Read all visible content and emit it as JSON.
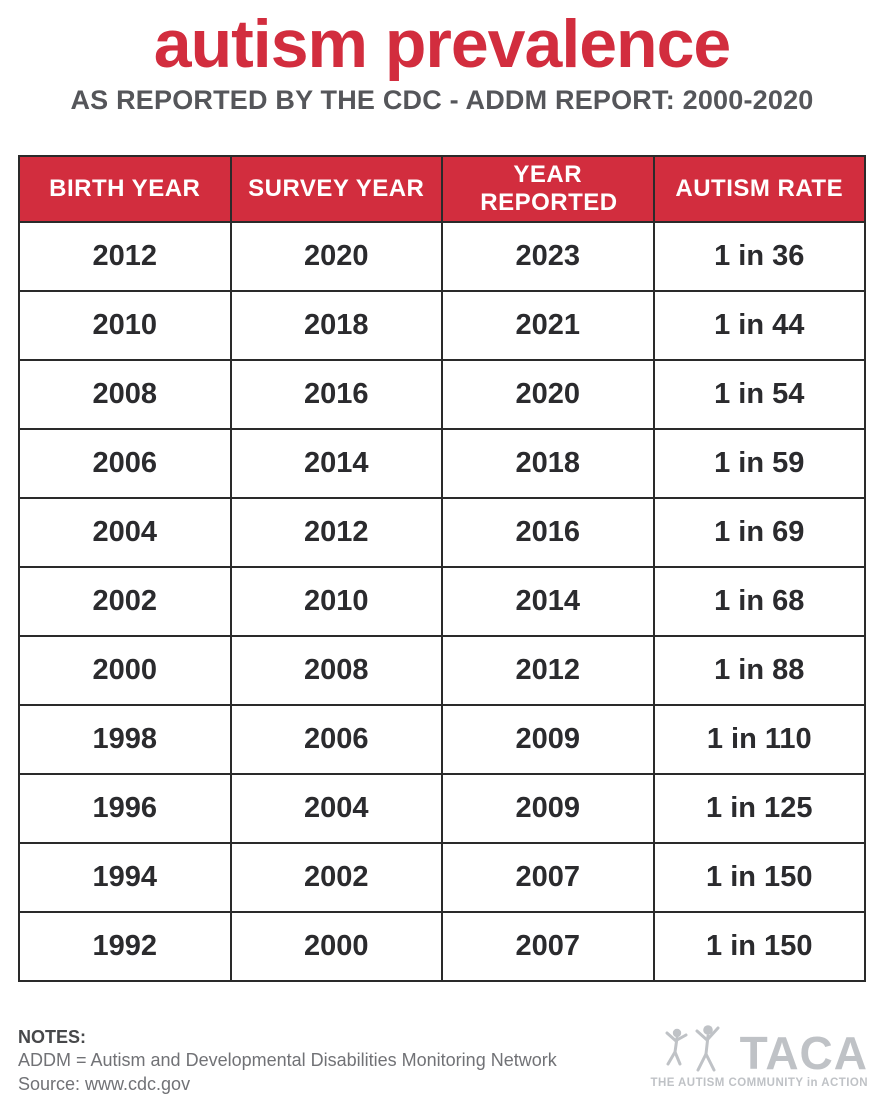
{
  "header": {
    "title": "autism prevalence",
    "subtitle": "AS REPORTED BY THE CDC - ADDM REPORT: 2000-2020"
  },
  "table": {
    "columns": [
      "BIRTH YEAR",
      "SURVEY YEAR",
      "YEAR REPORTED",
      "AUTISM RATE"
    ],
    "rows": [
      [
        "2012",
        "2020",
        "2023",
        "1 in 36"
      ],
      [
        "2010",
        "2018",
        "2021",
        "1 in 44"
      ],
      [
        "2008",
        "2016",
        "2020",
        "1 in 54"
      ],
      [
        "2006",
        "2014",
        "2018",
        "1 in 59"
      ],
      [
        "2004",
        "2012",
        "2016",
        "1 in 69"
      ],
      [
        "2002",
        "2010",
        "2014",
        "1 in 68"
      ],
      [
        "2000",
        "2008",
        "2012",
        "1 in 88"
      ],
      [
        "1998",
        "2006",
        "2009",
        "1 in 110"
      ],
      [
        "1996",
        "2004",
        "2009",
        "1 in 125"
      ],
      [
        "1994",
        "2002",
        "2007",
        "1 in 150"
      ],
      [
        "1992",
        "2000",
        "2007",
        "1 in 150"
      ]
    ]
  },
  "notes": {
    "label": "NOTES:",
    "lines": [
      "ADDM = Autism and Developmental Disabilities Monitoring Network",
      "Source: www.cdc.gov"
    ]
  },
  "logo": {
    "name": "TACA",
    "tagline": "THE AUTISM COMMUNITY in ACTION"
  },
  "colors": {
    "accent_red": "#d22d3e",
    "cell_text": "#2b2b2e",
    "subtitle_gray": "#55565a",
    "border_dark": "#2a2a2a",
    "notes_gray": "#717276",
    "logo_gray": "#bfc2c6"
  },
  "chart_data": {
    "type": "table",
    "title": "autism prevalence",
    "subtitle": "AS REPORTED BY THE CDC - ADDM REPORT: 2000-2020",
    "columns": [
      "BIRTH YEAR",
      "SURVEY YEAR",
      "YEAR REPORTED",
      "AUTISM RATE"
    ],
    "rows": [
      {
        "birth_year": 2012,
        "survey_year": 2020,
        "year_reported": 2023,
        "autism_rate": "1 in 36"
      },
      {
        "birth_year": 2010,
        "survey_year": 2018,
        "year_reported": 2021,
        "autism_rate": "1 in 44"
      },
      {
        "birth_year": 2008,
        "survey_year": 2016,
        "year_reported": 2020,
        "autism_rate": "1 in 54"
      },
      {
        "birth_year": 2006,
        "survey_year": 2014,
        "year_reported": 2018,
        "autism_rate": "1 in 59"
      },
      {
        "birth_year": 2004,
        "survey_year": 2012,
        "year_reported": 2016,
        "autism_rate": "1 in 69"
      },
      {
        "birth_year": 2002,
        "survey_year": 2010,
        "year_reported": 2014,
        "autism_rate": "1 in 68"
      },
      {
        "birth_year": 2000,
        "survey_year": 2008,
        "year_reported": 2012,
        "autism_rate": "1 in 88"
      },
      {
        "birth_year": 1998,
        "survey_year": 2006,
        "year_reported": 2009,
        "autism_rate": "1 in 110"
      },
      {
        "birth_year": 1996,
        "survey_year": 2004,
        "year_reported": 2009,
        "autism_rate": "1 in 125"
      },
      {
        "birth_year": 1994,
        "survey_year": 2002,
        "year_reported": 2007,
        "autism_rate": "1 in 150"
      },
      {
        "birth_year": 1992,
        "survey_year": 2000,
        "year_reported": 2007,
        "autism_rate": "1 in 150"
      }
    ]
  }
}
